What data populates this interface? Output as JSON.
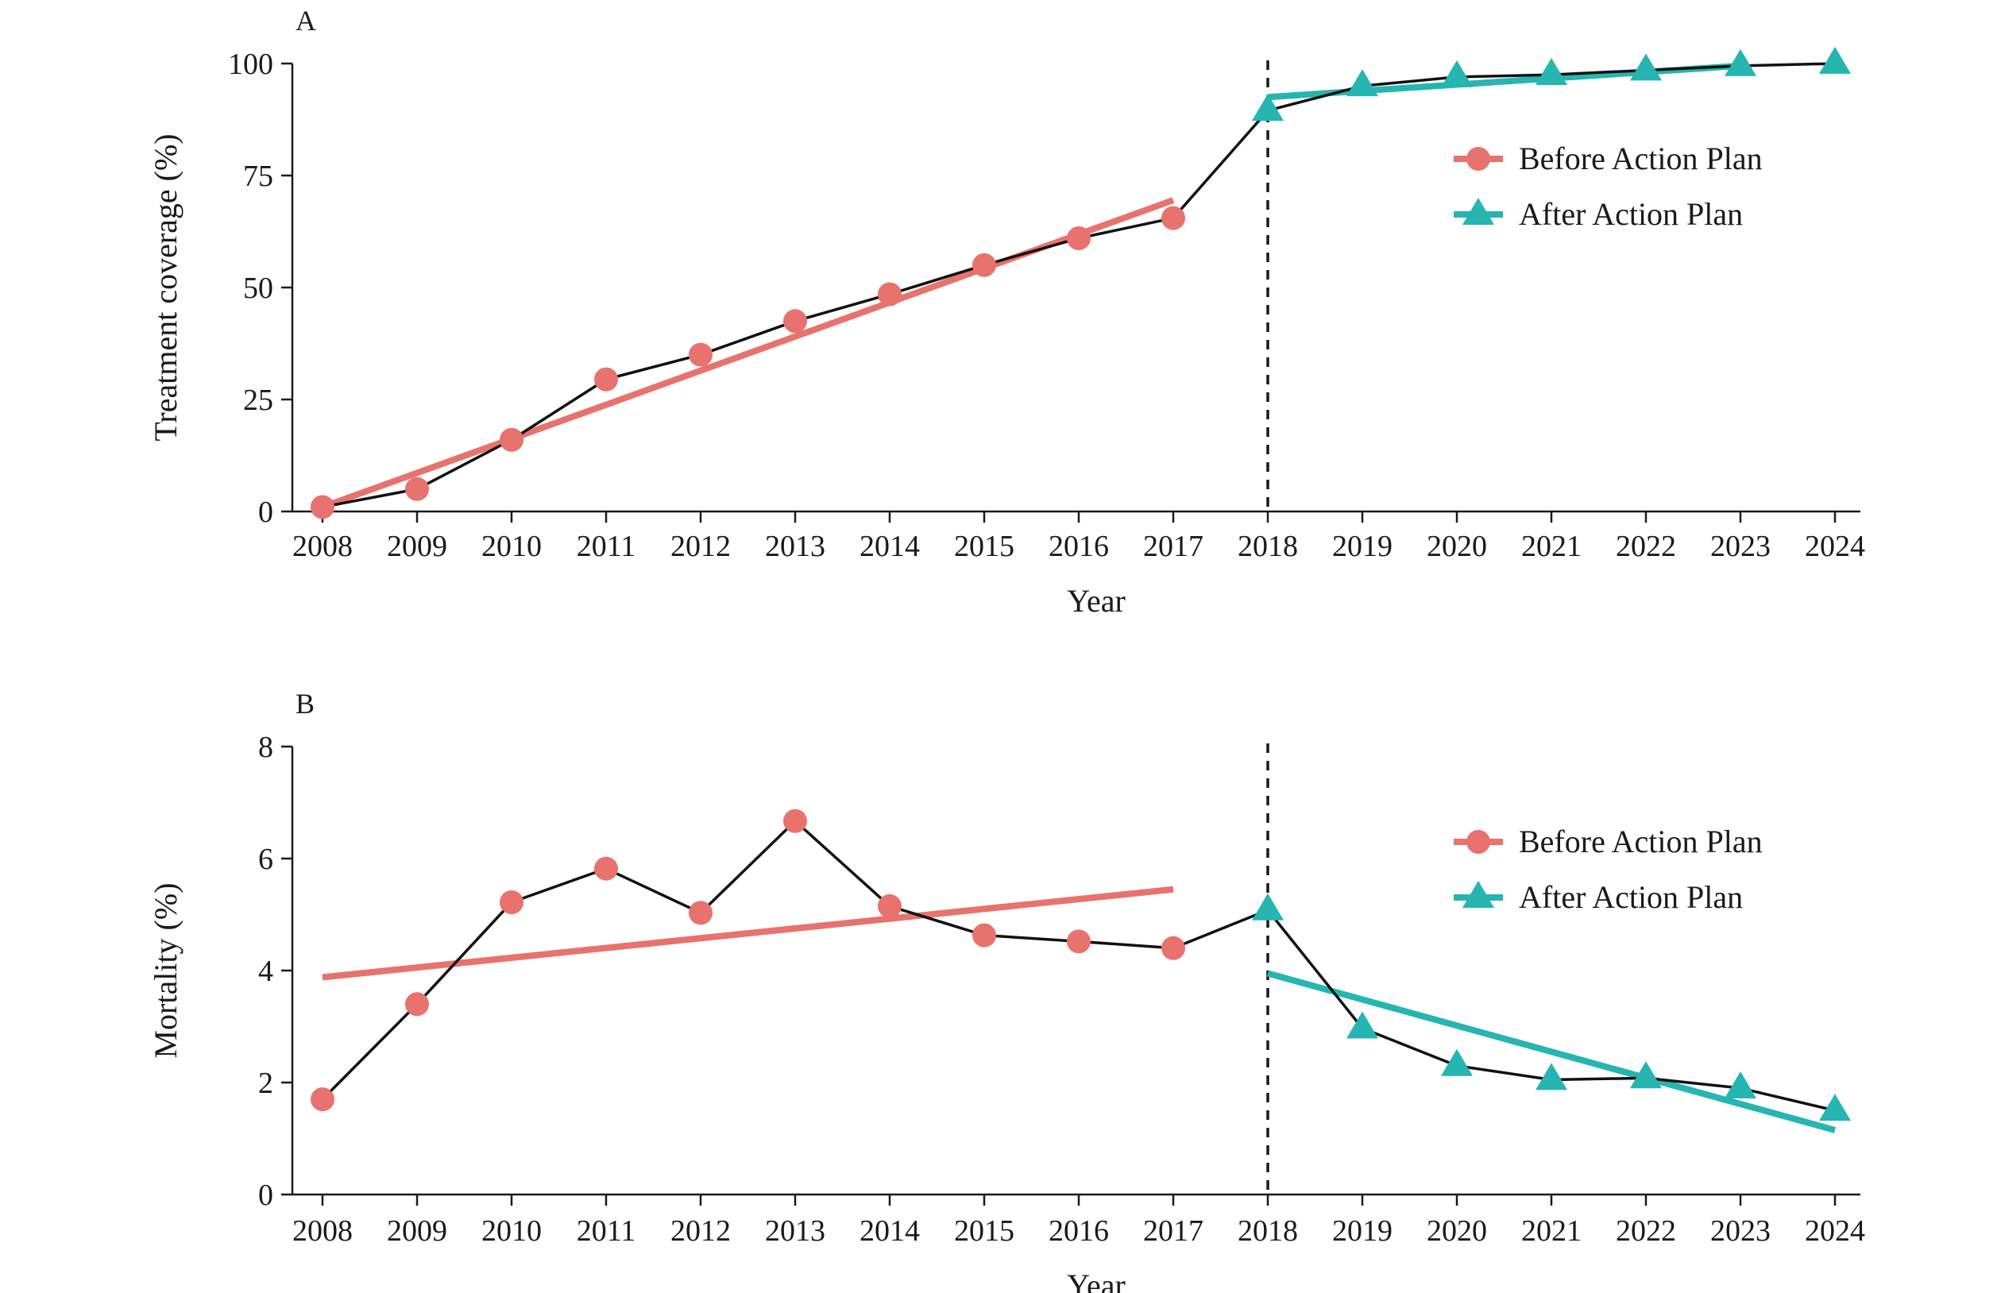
{
  "chart_data": [
    {
      "panel_label": "A",
      "type": "line",
      "xlabel": "Year",
      "ylabel": "Treatment coverage (%)",
      "xlim": [
        2008,
        2024
      ],
      "ylim": [
        0,
        100
      ],
      "x_ticks": [
        2008,
        2009,
        2010,
        2011,
        2012,
        2013,
        2014,
        2015,
        2016,
        2017,
        2018,
        2019,
        2020,
        2021,
        2022,
        2023,
        2024
      ],
      "y_ticks": [
        0,
        25,
        50,
        75,
        100
      ],
      "x_tick_labels": [
        "2008",
        "2009",
        "2010",
        "2011",
        "2012",
        "2013",
        "2014",
        "2015",
        "2016",
        "2017",
        "2018",
        "2019",
        "2020",
        "2021",
        "2022",
        "2023",
        "2024"
      ],
      "y_tick_labels": [
        "0",
        "25",
        "50",
        "75",
        "100"
      ],
      "intervention_year": 2018,
      "series": [
        {
          "name": "Before Action Plan",
          "marker": "circle",
          "color": "#E8726E",
          "x": [
            2008,
            2009,
            2010,
            2011,
            2012,
            2013,
            2014,
            2015,
            2016,
            2017
          ],
          "values": [
            1.0,
            5.0,
            16.0,
            29.5,
            35.0,
            42.5,
            48.5,
            55.0,
            61.0,
            65.5
          ],
          "trend": {
            "x": [
              2008,
              2017
            ],
            "y": [
              1.0,
              69.5
            ]
          }
        },
        {
          "name": "After Action Plan",
          "marker": "triangle",
          "color": "#26B5B0",
          "x": [
            2018,
            2019,
            2020,
            2021,
            2022,
            2023,
            2024
          ],
          "values": [
            89.5,
            95.0,
            97.0,
            97.5,
            98.5,
            99.5,
            100.0
          ],
          "trend": {
            "x": [
              2018,
              2023
            ],
            "y": [
              92.5,
              99.5
            ]
          }
        }
      ],
      "legend": {
        "position": "top-right",
        "entries": [
          "Before Action Plan",
          "After Action Plan"
        ]
      }
    },
    {
      "panel_label": "B",
      "type": "line",
      "xlabel": "Year",
      "ylabel": "Mortality (%)",
      "xlim": [
        2008,
        2024
      ],
      "ylim": [
        0,
        8
      ],
      "x_ticks": [
        2008,
        2009,
        2010,
        2011,
        2012,
        2013,
        2014,
        2015,
        2016,
        2017,
        2018,
        2019,
        2020,
        2021,
        2022,
        2023,
        2024
      ],
      "y_ticks": [
        0,
        2,
        4,
        6,
        8
      ],
      "x_tick_labels": [
        "2008",
        "2009",
        "2010",
        "2011",
        "2012",
        "2013",
        "2014",
        "2015",
        "2016",
        "2017",
        "2018",
        "2019",
        "2020",
        "2021",
        "2022",
        "2023",
        "2024"
      ],
      "y_tick_labels": [
        "0",
        "2",
        "4",
        "6",
        "8"
      ],
      "intervention_year": 2018,
      "series": [
        {
          "name": "Before Action Plan",
          "marker": "circle",
          "color": "#E8726E",
          "x": [
            2008,
            2009,
            2010,
            2011,
            2012,
            2013,
            2014,
            2015,
            2016,
            2017
          ],
          "values": [
            1.7,
            3.4,
            5.22,
            5.82,
            5.03,
            6.67,
            5.15,
            4.63,
            4.52,
            4.4
          ],
          "trend": {
            "x": [
              2008,
              2017
            ],
            "y": [
              3.88,
              5.45
            ]
          }
        },
        {
          "name": "After Action Plan",
          "marker": "triangle",
          "color": "#26B5B0",
          "x": [
            2018,
            2019,
            2020,
            2021,
            2022,
            2023,
            2024
          ],
          "values": [
            5.08,
            2.97,
            2.3,
            2.05,
            2.08,
            1.9,
            1.5
          ],
          "trend": {
            "x": [
              2018,
              2024
            ],
            "y": [
              3.95,
              1.15
            ]
          }
        }
      ],
      "legend": {
        "position": "top-right",
        "entries": [
          "Before Action Plan",
          "After Action Plan"
        ]
      }
    }
  ]
}
